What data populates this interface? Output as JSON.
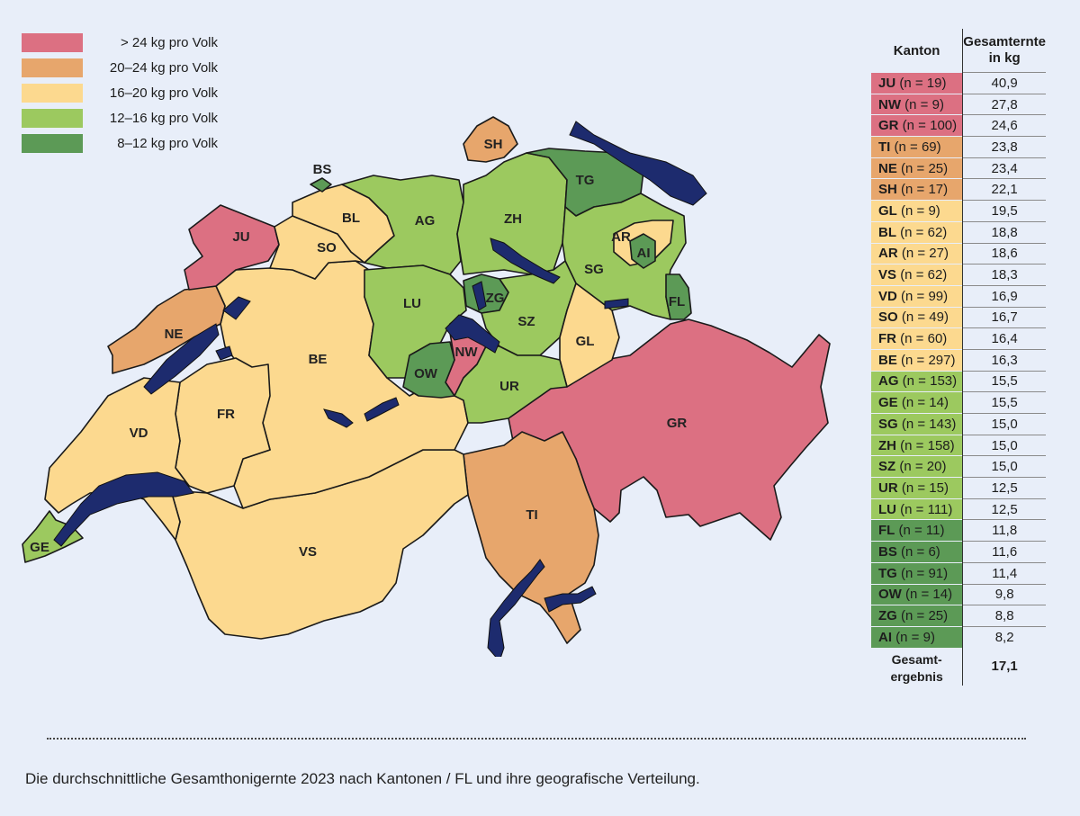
{
  "colors": {
    "over24": "#dc7082",
    "20to24": "#e7a66c",
    "16to20": "#fcd98f",
    "12to16": "#9cc95f",
    "8to12": "#5c9a56",
    "lake": "#1d2b6e",
    "border": "#1a1a1a",
    "background": "#e8eef9"
  },
  "legend": [
    {
      "label": "> 24 kg pro Volk",
      "color": "#dc7082"
    },
    {
      "label": "20–24 kg pro Volk",
      "color": "#e7a66c"
    },
    {
      "label": "16–20 kg pro Volk",
      "color": "#fcd98f"
    },
    {
      "label": "12–16 kg pro Volk",
      "color": "#9cc95f"
    },
    {
      "label": "8–12 kg pro Volk",
      "color": "#5c9a56"
    }
  ],
  "map_labels": [
    "JU",
    "BS",
    "BL",
    "SO",
    "AG",
    "ZH",
    "SH",
    "TG",
    "AR",
    "AI",
    "SG",
    "FL",
    "ZG",
    "LU",
    "SZ",
    "GL",
    "NE",
    "BE",
    "NW",
    "OW",
    "UR",
    "GR",
    "VD",
    "FR",
    "TI",
    "VS",
    "GE"
  ],
  "table": {
    "header_kanton": "Kanton",
    "header_ernte_line1": "Gesamternte",
    "header_ernte_line2": "in kg",
    "rows": [
      {
        "code": "JU",
        "n": "(n = 19)",
        "value": "40,9",
        "color": "#dc7082"
      },
      {
        "code": "NW",
        "n": "(n = 9)",
        "value": "27,8",
        "color": "#dc7082"
      },
      {
        "code": "GR",
        "n": "(n = 100)",
        "value": "24,6",
        "color": "#dc7082"
      },
      {
        "code": "TI",
        "n": "(n = 69)",
        "value": "23,8",
        "color": "#e7a66c"
      },
      {
        "code": "NE",
        "n": "(n = 25)",
        "value": "23,4",
        "color": "#e7a66c"
      },
      {
        "code": "SH",
        "n": "(n = 17)",
        "value": "22,1",
        "color": "#e7a66c"
      },
      {
        "code": "GL",
        "n": "(n = 9)",
        "value": "19,5",
        "color": "#fcd98f"
      },
      {
        "code": "BL",
        "n": "(n = 62)",
        "value": "18,8",
        "color": "#fcd98f"
      },
      {
        "code": "AR",
        "n": "(n = 27)",
        "value": "18,6",
        "color": "#fcd98f"
      },
      {
        "code": "VS",
        "n": "(n = 62)",
        "value": "18,3",
        "color": "#fcd98f"
      },
      {
        "code": "VD",
        "n": "(n = 99)",
        "value": "16,9",
        "color": "#fcd98f"
      },
      {
        "code": "SO",
        "n": "(n = 49)",
        "value": "16,7",
        "color": "#fcd98f"
      },
      {
        "code": "FR",
        "n": "(n = 60)",
        "value": "16,4",
        "color": "#fcd98f"
      },
      {
        "code": "BE",
        "n": "(n = 297)",
        "value": "16,3",
        "color": "#fcd98f"
      },
      {
        "code": "AG",
        "n": "(n = 153)",
        "value": "15,5",
        "color": "#9cc95f"
      },
      {
        "code": "GE",
        "n": "(n = 14)",
        "value": "15,5",
        "color": "#9cc95f"
      },
      {
        "code": "SG",
        "n": "(n = 143)",
        "value": "15,0",
        "color": "#9cc95f"
      },
      {
        "code": "ZH",
        "n": "(n = 158)",
        "value": "15,0",
        "color": "#9cc95f"
      },
      {
        "code": "SZ",
        "n": "(n = 20)",
        "value": "15,0",
        "color": "#9cc95f"
      },
      {
        "code": "UR",
        "n": "(n = 15)",
        "value": "12,5",
        "color": "#9cc95f"
      },
      {
        "code": "LU",
        "n": "(n = 111)",
        "value": "12,5",
        "color": "#9cc95f"
      },
      {
        "code": "FL",
        "n": "(n = 11)",
        "value": "11,8",
        "color": "#5c9a56"
      },
      {
        "code": "BS",
        "n": "(n = 6)",
        "value": "11,6",
        "color": "#5c9a56"
      },
      {
        "code": "TG",
        "n": "(n = 91)",
        "value": "11,4",
        "color": "#5c9a56"
      },
      {
        "code": "OW",
        "n": "(n = 14)",
        "value": "9,8",
        "color": "#5c9a56"
      },
      {
        "code": "ZG",
        "n": "(n = 25)",
        "value": "8,8",
        "color": "#5c9a56"
      },
      {
        "code": "AI",
        "n": "(n = 9)",
        "value": "8,2",
        "color": "#5c9a56"
      }
    ],
    "total_label_line1": "Gesamt-",
    "total_label_line2": "ergebnis",
    "total_value": "17,1"
  },
  "caption": "Die durchschnittliche Gesamthonigernte 2023 nach Kantonen / FL und ihre geografische Verteilung."
}
